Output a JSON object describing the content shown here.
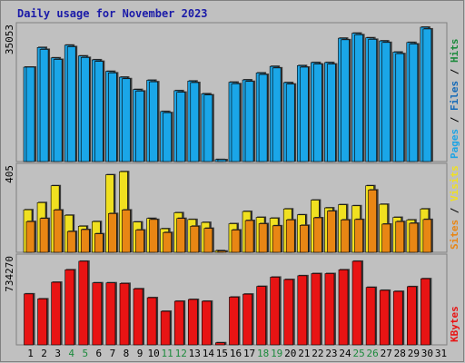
{
  "chart_data": {
    "type": "bar",
    "title": "Daily usage for November 2023",
    "days": [
      "1",
      "2",
      "3",
      "4",
      "5",
      "6",
      "7",
      "8",
      "9",
      "10",
      "11",
      "12",
      "13",
      "14",
      "15",
      "16",
      "17",
      "18",
      "19",
      "20",
      "21",
      "22",
      "23",
      "24",
      "25",
      "26",
      "27",
      "28",
      "29",
      "30",
      "31"
    ],
    "weekend_days": [
      "4",
      "5",
      "11",
      "12",
      "18",
      "19",
      "25",
      "26"
    ],
    "colors": {
      "background": "#c0c0c0",
      "border": "#808080",
      "pages": "#156ab8",
      "files": "#1aa6e8",
      "hits": "#1fa4e4",
      "visits": "#f0e020",
      "sites": "#e88614",
      "kbytes": "#e81414",
      "weekday_label": "#000000",
      "weekend_label": "#1c8a3c",
      "title": "#1a1aa8"
    },
    "panels": [
      {
        "name": "hits",
        "ymax_label": "35053",
        "ymax": 35053,
        "right_label": [
          {
            "text": "Pages",
            "color": "#1fa4e4"
          },
          {
            "text": " / ",
            "color": "#000000"
          },
          {
            "text": "Files",
            "color": "#156ab8"
          },
          {
            "text": " / ",
            "color": "#000000"
          },
          {
            "text": "Hits",
            "color": "#1c8a3c"
          }
        ],
        "series": [
          {
            "name": "Hits",
            "values": [
              24700,
              29800,
              27100,
              30400,
              27600,
              26600,
              23600,
              22100,
              18900,
              21300,
              13200,
              18600,
              21100,
              17800,
              750,
              20800,
              21400,
              23200,
              24900,
              20700,
              25100,
              25900,
              25900,
              32200,
              33500,
              32300,
              31500,
              28600,
              31100,
              35053,
              0
            ]
          },
          {
            "name": "Files",
            "values": [
              24700,
              29300,
              26700,
              30000,
              27200,
              26200,
              23200,
              21700,
              18500,
              20900,
              12900,
              18200,
              20700,
              17500,
              700,
              20400,
              21000,
              22800,
              24500,
              20300,
              24700,
              25500,
              25500,
              31800,
              33100,
              31900,
              31100,
              28200,
              30700,
              34600,
              0
            ]
          }
        ]
      },
      {
        "name": "visits",
        "ymax_label": "405",
        "ymax": 405,
        "right_label": [
          {
            "text": "Sites",
            "color": "#e88614"
          },
          {
            "text": " / ",
            "color": "#000000"
          },
          {
            "text": "Visits",
            "color": "#f0e020"
          }
        ],
        "series": [
          {
            "name": "Visits",
            "values": [
              206,
              240,
              320,
              180,
              128,
              150,
              372,
              387,
              148,
              165,
              116,
              192,
              160,
              146,
              12,
              140,
              198,
              170,
              166,
              210,
              182,
              252,
              215,
              230,
              225,
              320,
              232,
              170,
              158,
              210,
              0
            ]
          },
          {
            "name": "Sites",
            "values": [
              150,
              165,
              205,
              103,
              112,
              92,
              188,
              205,
              110,
              160,
              98,
              165,
              128,
              118,
              10,
              110,
              155,
              140,
              130,
              158,
              132,
              168,
              200,
              158,
              160,
              300,
              138,
              150,
              142,
              160,
              0
            ]
          }
        ]
      },
      {
        "name": "kbytes",
        "ymax_label": "734270",
        "ymax": 734270,
        "right_label": [
          {
            "text": "KBytes",
            "color": "#e81414"
          }
        ],
        "series": [
          {
            "name": "KBytes",
            "values": [
              437000,
              395000,
              535000,
              640000,
              712000,
              530000,
              530000,
              525000,
              480000,
              405000,
              290000,
              375000,
              390000,
              375000,
              25000,
              410000,
              435000,
              500000,
              578000,
              558000,
              590000,
              608000,
              608000,
              640000,
              712000,
              492000,
              467000,
              458000,
              498000,
              565000,
              0
            ]
          }
        ]
      }
    ]
  }
}
